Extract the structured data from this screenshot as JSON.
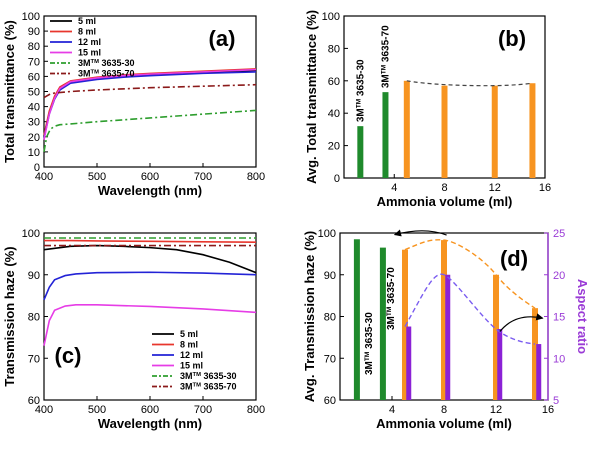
{
  "colors": {
    "s5": "#000000",
    "s8": "#e8362d",
    "s12": "#2323d6",
    "s15": "#e63de6",
    "s30": "#2e9e2e",
    "s70": "#8b1a1a",
    "green_bar": "#1f8a2c",
    "orange_bar": "#f79420",
    "purple_bar": "#8b21d6",
    "axis_purple": "#9a3bd6"
  },
  "chart_data": [
    {
      "id": "a",
      "type": "line",
      "panel_label": "(a)",
      "xlabel": "Wavelength (nm)",
      "ylabel": "Total transmittance (%)",
      "xlim": [
        400,
        800
      ],
      "ylim": [
        0,
        100
      ],
      "xticks": [
        "400",
        "500",
        "600",
        "700",
        "800"
      ],
      "yticks": [
        "0",
        "10",
        "20",
        "30",
        "40",
        "50",
        "60",
        "70",
        "80",
        "90",
        "100"
      ],
      "legend_position": "top-left",
      "series": [
        {
          "key": "s5",
          "name": "5 ml",
          "style": "solid",
          "x": [
            400,
            410,
            420,
            430,
            450,
            500,
            550,
            600,
            700,
            800
          ],
          "y": [
            20,
            36,
            46,
            52,
            56,
            58.5,
            60,
            61,
            62.5,
            64
          ]
        },
        {
          "key": "s8",
          "name": "8 ml",
          "style": "solid",
          "x": [
            400,
            410,
            420,
            430,
            450,
            500,
            550,
            600,
            700,
            800
          ],
          "y": [
            21,
            37,
            47,
            53,
            57,
            59.5,
            61,
            62,
            63.5,
            65
          ]
        },
        {
          "key": "s12",
          "name": "12 ml",
          "style": "solid",
          "x": [
            400,
            410,
            420,
            430,
            450,
            500,
            550,
            600,
            700,
            800
          ],
          "y": [
            19,
            35,
            45,
            51,
            55.5,
            58,
            59.5,
            60.5,
            62,
            63
          ]
        },
        {
          "key": "s15",
          "name": "15 ml",
          "style": "solid",
          "x": [
            400,
            410,
            420,
            430,
            450,
            500,
            550,
            600,
            700,
            800
          ],
          "y": [
            18,
            35,
            45.5,
            52,
            56.5,
            59,
            60.5,
            61.5,
            63,
            64.5
          ]
        },
        {
          "key": "s30",
          "name_prefix": "3M",
          "name_sup": "TM",
          "name_suffix": " 3635-30",
          "style": "dashdot",
          "x": [
            400,
            405,
            412,
            420,
            430,
            450,
            500,
            600,
            700,
            800
          ],
          "y": [
            10,
            20,
            25,
            27,
            28,
            28.5,
            30,
            32.5,
            35,
            37.5
          ]
        },
        {
          "key": "s70",
          "name_prefix": "3M",
          "name_sup": "TM",
          "name_suffix": " 3635-70",
          "style": "dashdot",
          "x": [
            400,
            410,
            420,
            450,
            500,
            600,
            700,
            800
          ],
          "y": [
            46,
            48,
            49,
            50,
            51,
            52.5,
            53.5,
            54.5
          ]
        }
      ]
    },
    {
      "id": "b",
      "type": "bar",
      "panel_label": "(b)",
      "xlabel": "Ammonia volume (ml)",
      "ylabel": "Avg. Total transmittance (%)",
      "xlim": [
        0,
        16
      ],
      "ylim": [
        0,
        100
      ],
      "xticks": [
        "4",
        "8",
        "12",
        "16"
      ],
      "yticks": [
        "0",
        "20",
        "40",
        "60",
        "80",
        "100"
      ],
      "bars": [
        {
          "x": 1.3,
          "value": 32,
          "color_key": "green_bar",
          "label_prefix": "3M",
          "label_sup": "TM",
          "label_suffix": " 3635-30"
        },
        {
          "x": 3.3,
          "value": 53,
          "color_key": "green_bar",
          "label_prefix": "3M",
          "label_sup": "TM",
          "label_suffix": " 3635-70"
        },
        {
          "x": 5,
          "value": 60,
          "color_key": "orange_bar"
        },
        {
          "x": 8,
          "value": 57,
          "color_key": "orange_bar"
        },
        {
          "x": 12,
          "value": 57,
          "color_key": "orange_bar"
        },
        {
          "x": 15,
          "value": 58.5,
          "color_key": "orange_bar"
        }
      ],
      "trend": {
        "x": [
          5,
          8,
          12,
          15
        ],
        "y": [
          60,
          57,
          57,
          58.5
        ],
        "color": "#444444"
      }
    },
    {
      "id": "c",
      "type": "line",
      "panel_label": "(c)",
      "xlabel": "Wavelength (nm)",
      "ylabel": "Transmission haze (%)",
      "xlim": [
        400,
        800
      ],
      "ylim": [
        60,
        100
      ],
      "xticks": [
        "400",
        "500",
        "600",
        "700",
        "800"
      ],
      "yticks": [
        "60",
        "70",
        "80",
        "90",
        "100"
      ],
      "legend_position": "bottom-right",
      "series": [
        {
          "key": "s5",
          "name": "5 ml",
          "style": "solid",
          "x": [
            400,
            450,
            500,
            550,
            600,
            650,
            700,
            750,
            800
          ],
          "y": [
            96,
            96.8,
            97,
            96.8,
            96.5,
            96,
            94.8,
            93,
            90.5
          ]
        },
        {
          "key": "s8",
          "name": "8 ml",
          "style": "solid",
          "x": [
            400,
            450,
            500,
            600,
            700,
            800
          ],
          "y": [
            98.2,
            98.2,
            98.1,
            98,
            97.9,
            97.8
          ]
        },
        {
          "key": "s12",
          "name": "12 ml",
          "style": "solid",
          "x": [
            400,
            410,
            420,
            440,
            460,
            500,
            600,
            700,
            800
          ],
          "y": [
            84,
            87,
            88.8,
            89.8,
            90.2,
            90.5,
            90.6,
            90.4,
            90
          ]
        },
        {
          "key": "s15",
          "name": "15 ml",
          "style": "solid",
          "x": [
            400,
            410,
            420,
            440,
            460,
            500,
            600,
            700,
            800
          ],
          "y": [
            73,
            79,
            81.5,
            82.5,
            82.8,
            82.8,
            82.4,
            81.8,
            81
          ]
        },
        {
          "key": "s30",
          "name_prefix": "3M",
          "name_sup": "TM",
          "name_suffix": " 3635-30",
          "style": "dashdot",
          "x": [
            400,
            500,
            600,
            700,
            800
          ],
          "y": [
            98.8,
            98.8,
            98.8,
            98.8,
            98.8
          ]
        },
        {
          "key": "s70",
          "name_prefix": "3M",
          "name_sup": "TM",
          "name_suffix": " 3635-70",
          "style": "dashdot",
          "x": [
            400,
            500,
            600,
            700,
            800
          ],
          "y": [
            97,
            97,
            97,
            97,
            97
          ]
        }
      ]
    },
    {
      "id": "d",
      "type": "bar",
      "panel_label": "(d)",
      "xlabel": "Ammonia volume (ml)",
      "ylabel": "Avg. Transmission haze (%)",
      "y2label": "Aspect ratio",
      "xlim": [
        0,
        16
      ],
      "ylim": [
        60,
        100
      ],
      "y2lim": [
        5,
        25
      ],
      "xticks": [
        "4",
        "8",
        "12",
        "16"
      ],
      "yticks": [
        "60",
        "70",
        "80",
        "90",
        "100"
      ],
      "y2ticks": [
        "5",
        "10",
        "15",
        "20",
        "25"
      ],
      "haze_bars": [
        {
          "x": 1.3,
          "value": 98.5,
          "color_key": "green_bar",
          "label_prefix": "3M",
          "label_sup": "TM",
          "label_suffix": " 3635-30"
        },
        {
          "x": 3.3,
          "value": 96.5,
          "color_key": "green_bar",
          "label_prefix": "3M",
          "label_sup": "TM",
          "label_suffix": " 3635-70"
        },
        {
          "x": 5,
          "value": 96,
          "color_key": "orange_bar"
        },
        {
          "x": 8,
          "value": 98.3,
          "color_key": "orange_bar"
        },
        {
          "x": 12,
          "value": 90,
          "color_key": "orange_bar"
        },
        {
          "x": 15,
          "value": 82,
          "color_key": "orange_bar"
        }
      ],
      "aspect_bars": [
        {
          "x": 5.25,
          "value": 13.8,
          "color_key": "purple_bar"
        },
        {
          "x": 8.25,
          "value": 20,
          "color_key": "purple_bar"
        },
        {
          "x": 12.25,
          "value": 13.5,
          "color_key": "purple_bar"
        },
        {
          "x": 15.25,
          "value": 11.7,
          "color_key": "purple_bar"
        }
      ],
      "haze_trend": {
        "x": [
          5,
          8,
          12,
          15
        ],
        "y": [
          96,
          98.3,
          90,
          82
        ],
        "color": "#f79420"
      },
      "aspect_trend": {
        "x": [
          5,
          8,
          12,
          15
        ],
        "y": [
          13.8,
          20,
          13.5,
          11.7
        ],
        "color": "#7a5cf0"
      }
    }
  ]
}
